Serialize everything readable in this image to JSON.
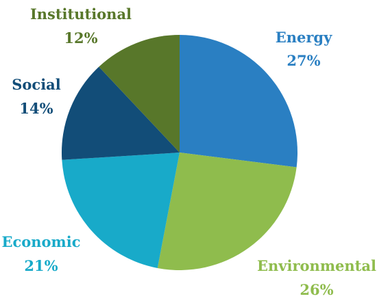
{
  "chart_data": {
    "type": "pie",
    "start_angle_deg": 0,
    "direction": "clockwise",
    "legend": "none",
    "slices": [
      {
        "name": "Energy",
        "value": 27,
        "label": "27%",
        "color": "#2a7fc2",
        "label_color": "#2a7fc2"
      },
      {
        "name": "Environmental",
        "value": 26,
        "label": "26%",
        "color": "#8fbc4d",
        "label_color": "#8fbc4d"
      },
      {
        "name": "Economic",
        "value": 21,
        "label": "21%",
        "color": "#18aac9",
        "label_color": "#18aac9"
      },
      {
        "name": "Social",
        "value": 14,
        "label": "14%",
        "color": "#124d78",
        "label_color": "#124d78"
      },
      {
        "name": "Institutional",
        "value": 12,
        "label": "12%",
        "color": "#58772a",
        "label_color": "#58772a"
      }
    ]
  }
}
